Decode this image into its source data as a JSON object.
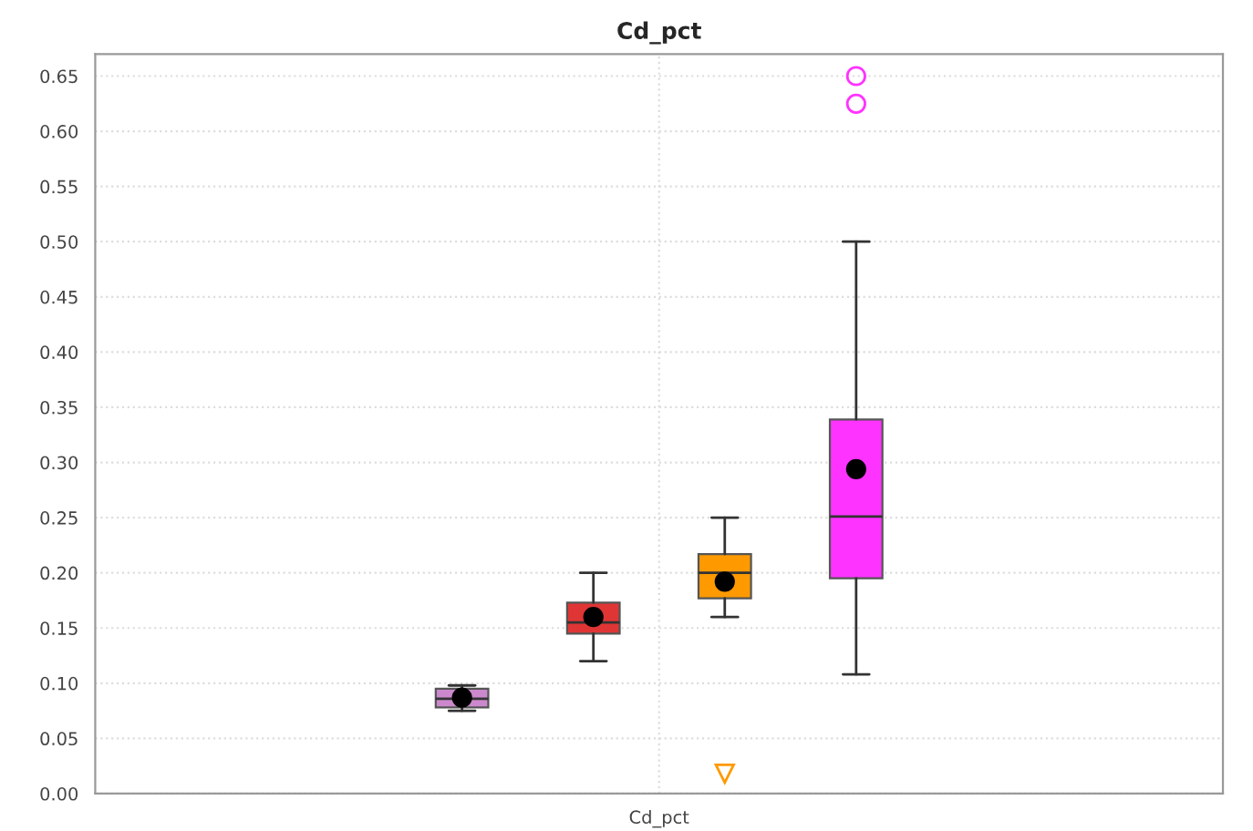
{
  "chart_data": {
    "type": "box",
    "title": "Cd_pct",
    "categories": [
      "Cd_pct"
    ],
    "series": [
      {
        "color": "#cc88cc",
        "marker": "circle",
        "boxes": [
          {
            "low": 0.075,
            "q1": 0.078,
            "median": 0.086,
            "q3": 0.095,
            "high": 0.098,
            "mean": 0.087
          }
        ]
      },
      {
        "color": "#e03535",
        "marker": "circle",
        "boxes": [
          {
            "low": 0.12,
            "q1": 0.145,
            "median": 0.155,
            "q3": 0.173,
            "high": 0.2,
            "mean": 0.16
          }
        ]
      },
      {
        "color": "#ff9900",
        "marker": "triangle",
        "boxes": [
          {
            "low": 0.16,
            "q1": 0.177,
            "median": 0.2,
            "q3": 0.217,
            "high": 0.25,
            "mean": 0.192,
            "outliers": [
              0.018
            ]
          }
        ]
      },
      {
        "color": "#ff33ff",
        "marker": "circle",
        "boxes": [
          {
            "low": 0.108,
            "q1": 0.195,
            "median": 0.251,
            "q3": 0.339,
            "high": 0.5,
            "mean": 0.294,
            "outliers": [
              0.625,
              0.65
            ]
          }
        ]
      }
    ],
    "ylim": [
      0,
      0.67
    ],
    "yticks": [
      {
        "value": 0,
        "label": "0.00"
      },
      {
        "value": 0.05,
        "label": "0.05"
      },
      {
        "value": 0.1,
        "label": "0.10"
      },
      {
        "value": 0.15,
        "label": "0.15"
      },
      {
        "value": 0.2,
        "label": "0.20"
      },
      {
        "value": 0.25,
        "label": "0.25"
      },
      {
        "value": 0.3,
        "label": "0.30"
      },
      {
        "value": 0.35,
        "label": "0.35"
      },
      {
        "value": 0.4,
        "label": "0.40"
      },
      {
        "value": 0.45,
        "label": "0.45"
      },
      {
        "value": 0.5,
        "label": "0.50"
      },
      {
        "value": 0.55,
        "label": "0.55"
      },
      {
        "value": 0.6,
        "label": "0.60"
      },
      {
        "value": 0.65,
        "label": "0.65"
      }
    ],
    "grid": true
  }
}
